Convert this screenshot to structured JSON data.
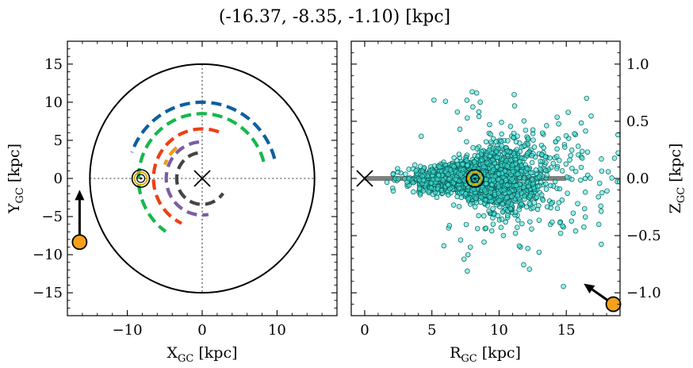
{
  "title": "(-16.37, -8.35, -1.10) [kpc]",
  "chart_data": [
    {
      "type": "line",
      "panel": "left",
      "xlabel_main": "X",
      "xlabel_sub": "GC",
      "xlabel_unit": " [kpc]",
      "ylabel_main": "Y",
      "ylabel_sub": "GC",
      "ylabel_unit": " [kpc]",
      "xlim": [
        -18,
        18
      ],
      "ylim": [
        -18,
        18
      ],
      "xticks": [
        -10,
        0,
        10
      ],
      "xtick_labels": [
        "−10",
        "0",
        "10"
      ],
      "yticks": [
        -15,
        -10,
        -5,
        0,
        5,
        10,
        15
      ],
      "ytick_labels": [
        "−15",
        "−10",
        "−5",
        "0",
        "5",
        "10",
        "15"
      ],
      "grid": false,
      "boundary_circle_radius": 15,
      "galactic_center": [
        0,
        0
      ],
      "sun": [
        -8.2,
        0
      ],
      "arrow": {
        "from": [
          -16.37,
          -8.35
        ],
        "to": [
          -16.37,
          -1.5
        ],
        "marker_color": "#f5a01a"
      },
      "spiral_arms": [
        {
          "color": "#0d5fa0",
          "radius": 10,
          "theta_start": 15,
          "theta_end": 160
        },
        {
          "color": "#16b84a",
          "radius": 8.5,
          "theta_start": 15,
          "theta_end": 235
        },
        {
          "color": "#ee3f12",
          "radius": 6.5,
          "theta_start": 70,
          "theta_end": 245
        },
        {
          "color": "#f29a16",
          "radius": 5.3,
          "theta_start": 130,
          "theta_end": 160
        },
        {
          "color": "#7b5ca3",
          "radius": 4.8,
          "theta_start": 95,
          "theta_end": 280
        },
        {
          "color": "#444444",
          "radius": 3.4,
          "theta_start": 100,
          "theta_end": 325
        }
      ]
    },
    {
      "type": "scatter",
      "panel": "right",
      "xlabel_main": "R",
      "xlabel_sub": "GC",
      "xlabel_unit": " [kpc]",
      "ylabel_main": "Z",
      "ylabel_sub": "GC",
      "ylabel_unit": " [kpc]",
      "xlim": [
        -1,
        19
      ],
      "ylim": [
        -1.2,
        1.2
      ],
      "xticks": [
        0,
        5,
        10,
        15
      ],
      "xtick_labels": [
        "0",
        "5",
        "10",
        "15"
      ],
      "yticks": [
        -1.0,
        -0.5,
        0.0,
        0.5,
        1.0
      ],
      "ytick_labels": [
        "−1.0",
        "−0.5",
        "0.0",
        "0.5",
        "1.0"
      ],
      "grid": false,
      "disk_band": {
        "x_start": 0,
        "x_end": 15,
        "z": 0
      },
      "galactic_center": [
        0,
        0
      ],
      "sun": [
        8.2,
        0
      ],
      "arrow": {
        "from": [
          18.5,
          -1.1
        ],
        "to": [
          16.3,
          -0.92
        ],
        "marker_color": "#f5a01a"
      },
      "point_color": "#3ee8dd",
      "point_edge": "#0b5a55",
      "n_points": 2500,
      "point_distribution_note_removed": true
    }
  ]
}
